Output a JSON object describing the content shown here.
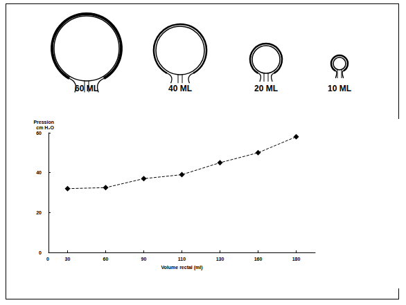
{
  "diagram": {
    "balloons": [
      {
        "label": "60 ML"
      },
      {
        "label": "40 ML"
      },
      {
        "label": "20 ML"
      },
      {
        "label": "10 ML"
      }
    ]
  },
  "chart_data": {
    "type": "line",
    "x_label": "Volume rectal (ml)",
    "y_label": "Pression cm H₂O",
    "categories": [
      "30",
      "60",
      "90",
      "110",
      "130",
      "160",
      "180"
    ],
    "values": [
      32,
      32.5,
      37,
      39,
      45,
      50,
      58
    ],
    "annotations": [
      "0"
    ],
    "color": "#000000",
    "marker": "diamond",
    "line_style": "dashed",
    "ylim": [
      0,
      60
    ],
    "yticks": [
      0,
      20,
      40,
      60
    ],
    "grid": false
  }
}
